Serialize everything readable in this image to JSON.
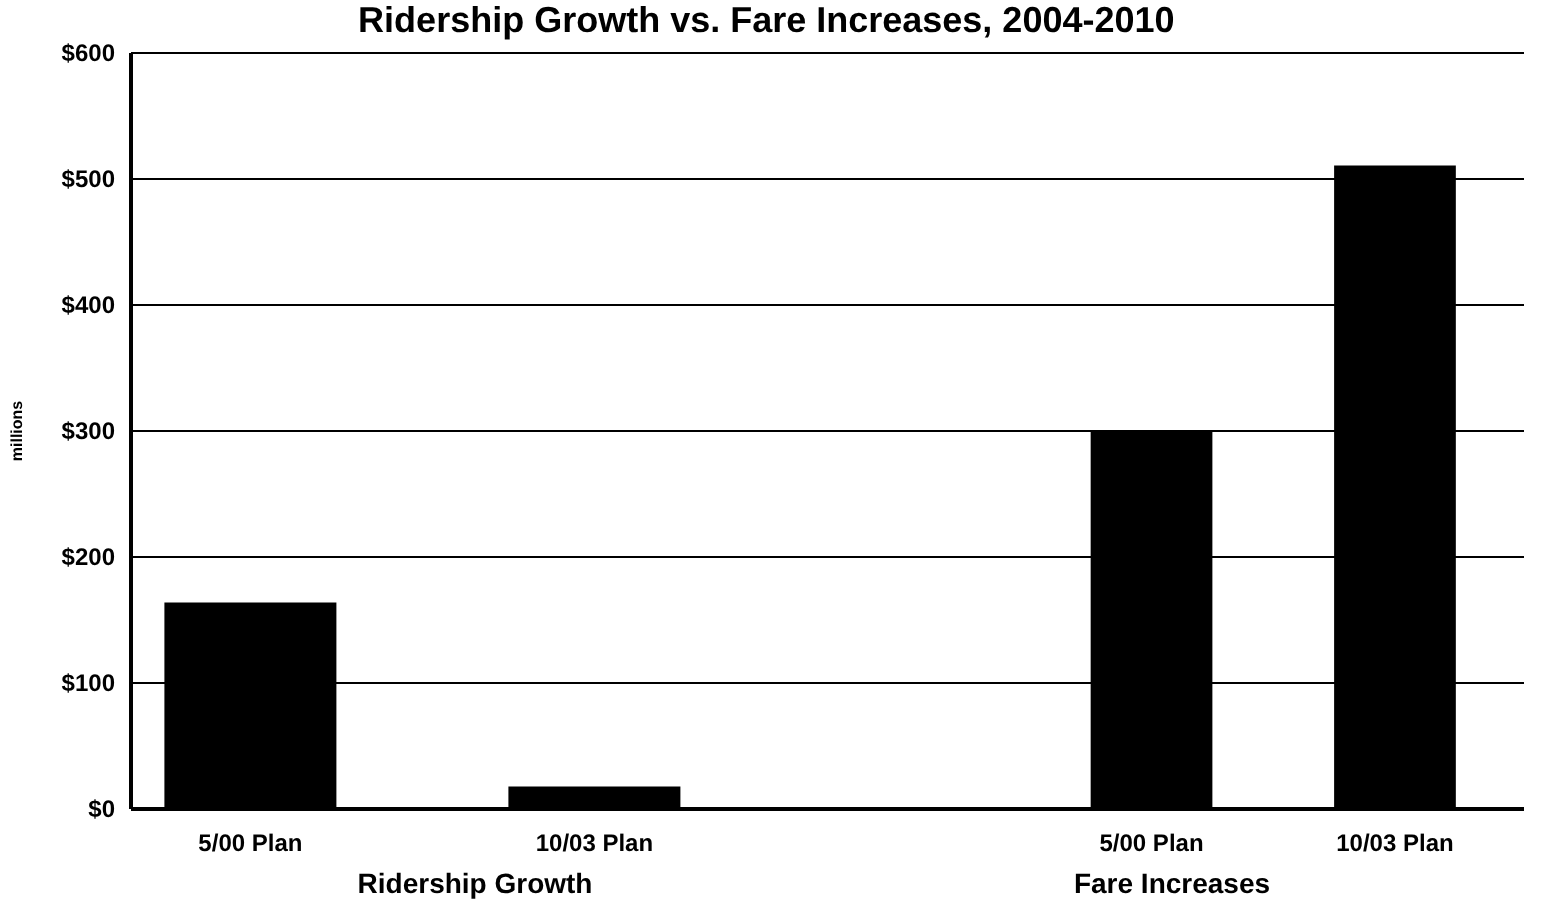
{
  "chart_data": [
    {
      "type": "bar",
      "title": "Ridership Growth vs. Fare Increases, 2004-2010",
      "ylabel": "millions",
      "xlabel": "Ridership Growth",
      "categories": [
        "5/00 Plan",
        "10/03 Plan"
      ],
      "values": [
        163,
        17
      ],
      "color": "#000000",
      "ylim": [
        0,
        600
      ],
      "yticks": [
        {
          "value": 0,
          "label": "$0"
        },
        {
          "value": 100,
          "label": "$100"
        },
        {
          "value": 200,
          "label": "$200"
        },
        {
          "value": 300,
          "label": "$300"
        },
        {
          "value": 400,
          "label": "$400"
        },
        {
          "value": 500,
          "label": "$500"
        },
        {
          "value": 600,
          "label": "$600"
        }
      ],
      "grid": "y"
    },
    {
      "type": "bar",
      "xlabel": "Fare Increases",
      "categories": [
        "5/00 Plan",
        "10/03 Plan"
      ],
      "values": [
        300,
        510
      ],
      "color": "#000000",
      "ylim": [
        0,
        600
      ],
      "yticks": [
        0,
        100,
        200,
        300,
        400,
        500,
        600
      ],
      "grid": "y",
      "tick_labels": "x"
    }
  ]
}
